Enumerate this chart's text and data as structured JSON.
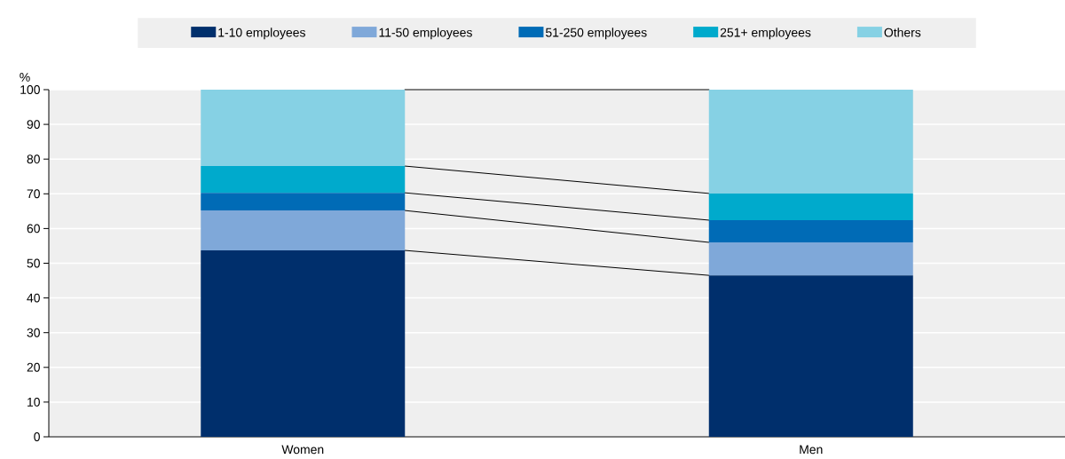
{
  "chart_data": {
    "type": "bar",
    "stacked": true,
    "ylabel": "%",
    "categories": [
      "Women",
      "Men"
    ],
    "series": [
      {
        "name": "1-10 employees",
        "color": "#002f6c",
        "values": [
          53.7,
          46.5
        ]
      },
      {
        "name": "11-50 employees",
        "color": "#7fa8d9",
        "values": [
          11.5,
          9.5
        ]
      },
      {
        "name": "51-250 employees",
        "color": "#006bb6",
        "values": [
          5.1,
          6.4
        ]
      },
      {
        "name": "251+ employees",
        "color": "#00aacc",
        "values": [
          7.7,
          7.7
        ]
      },
      {
        "name": "Others",
        "color": "#86d1e4",
        "values": [
          22.0,
          29.9
        ]
      }
    ],
    "ylim": [
      0,
      100
    ],
    "yticks": [
      0,
      10,
      20,
      30,
      40,
      50,
      60,
      70,
      80,
      90,
      100
    ],
    "grid": "y",
    "legend": "top"
  }
}
